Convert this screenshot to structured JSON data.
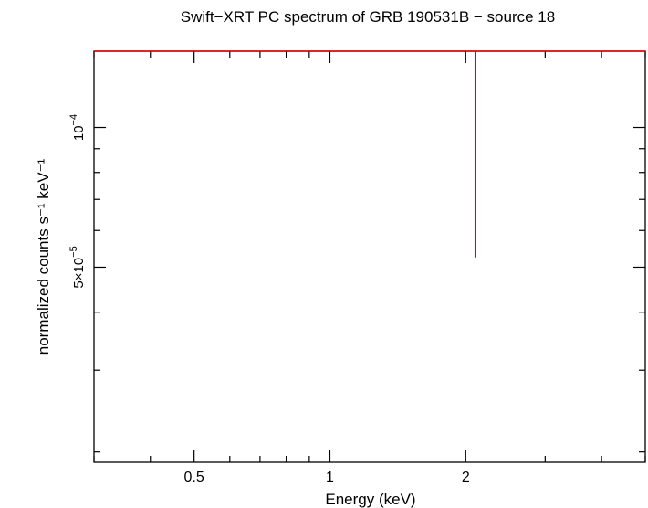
{
  "chart_data": {
    "type": "scatter",
    "title": "Swift−XRT PC spectrum of GRB 190531B − source 18",
    "xlabel": "Energy (keV)",
    "ylabel": "normalized counts s⁻¹ keV⁻¹",
    "x_scale": "log",
    "y_scale": "log",
    "xlim": [
      0.3,
      5.0
    ],
    "ylim": [
      1.9e-05,
      0.000146
    ],
    "x_ticks": [
      {
        "value": 0.5,
        "label": "0.5"
      },
      {
        "value": 1,
        "label": "1"
      },
      {
        "value": 2,
        "label": "2"
      }
    ],
    "y_ticks": [
      {
        "value": 0.0001,
        "label_base": "10",
        "label_exp": "−4"
      },
      {
        "value": 5e-05,
        "label_base": "5×10",
        "label_exp": "−5"
      }
    ],
    "grid": false,
    "series": [
      {
        "color": "#e00000",
        "points": [
          {
            "x": 2.1,
            "x_err": [
              0.3,
              5.0
            ],
            "y": 0.000146,
            "y_err": [
              5.25e-05,
              0.000146
            ]
          }
        ]
      }
    ]
  }
}
